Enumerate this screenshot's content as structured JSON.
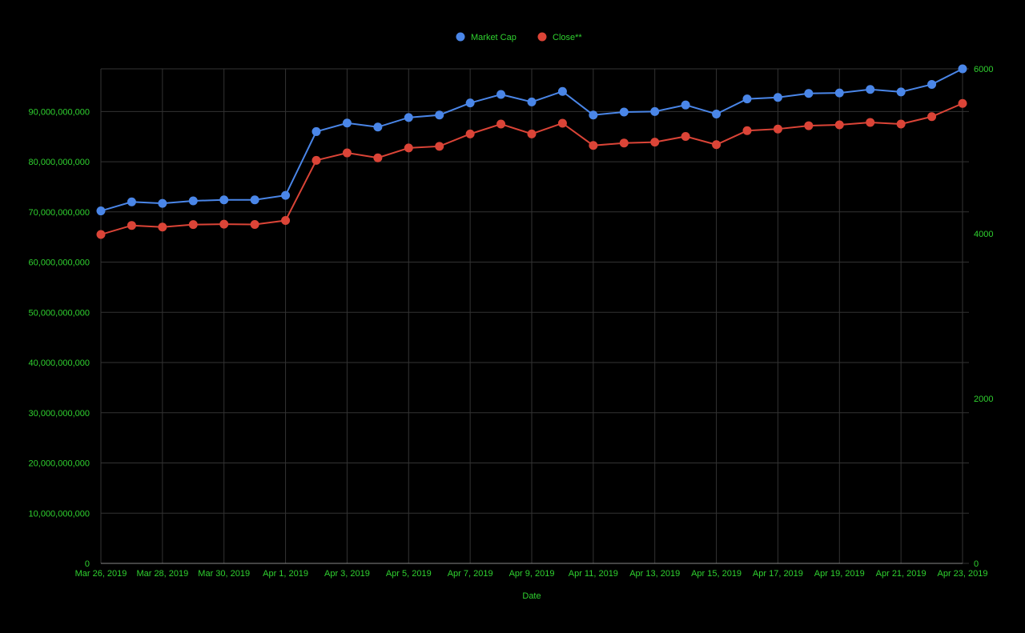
{
  "chart_data": {
    "type": "line",
    "title": "",
    "xlabel": "Date",
    "ylabel": "",
    "y2label": "",
    "legend_position": "top-center",
    "grid": true,
    "ylim": [
      0,
      98500000000
    ],
    "y2lim": [
      0,
      6000
    ],
    "y_ticks": [
      {
        "value": 0,
        "label": "0"
      },
      {
        "value": 10000000000,
        "label": "10,000,000,000"
      },
      {
        "value": 20000000000,
        "label": "20,000,000,000"
      },
      {
        "value": 30000000000,
        "label": "30,000,000,000"
      },
      {
        "value": 40000000000,
        "label": "40,000,000,000"
      },
      {
        "value": 50000000000,
        "label": "50,000,000,000"
      },
      {
        "value": 60000000000,
        "label": "60,000,000,000"
      },
      {
        "value": 70000000000,
        "label": "70,000,000,000"
      },
      {
        "value": 80000000000,
        "label": "80,000,000,000"
      },
      {
        "value": 90000000000,
        "label": "90,000,000,000"
      }
    ],
    "y2_ticks": [
      {
        "value": 0,
        "label": "0"
      },
      {
        "value": 2000,
        "label": "2000"
      },
      {
        "value": 4000,
        "label": "4000"
      },
      {
        "value": 6000,
        "label": "6000"
      }
    ],
    "x": [
      "Mar 26, 2019",
      "Mar 27, 2019",
      "Mar 28, 2019",
      "Mar 29, 2019",
      "Mar 30, 2019",
      "Mar 31, 2019",
      "Apr 1, 2019",
      "Apr 2, 2019",
      "Apr 3, 2019",
      "Apr 4, 2019",
      "Apr 5, 2019",
      "Apr 6, 2019",
      "Apr 7, 2019",
      "Apr 8, 2019",
      "Apr 9, 2019",
      "Apr 10, 2019",
      "Apr 11, 2019",
      "Apr 12, 2019",
      "Apr 13, 2019",
      "Apr 14, 2019",
      "Apr 15, 2019",
      "Apr 16, 2019",
      "Apr 17, 2019",
      "Apr 18, 2019",
      "Apr 19, 2019",
      "Apr 20, 2019",
      "Apr 21, 2019",
      "Apr 22, 2019",
      "Apr 23, 2019"
    ],
    "x_tick_labels": [
      {
        "index": 0,
        "label": "Mar 26, 2019"
      },
      {
        "index": 2,
        "label": "Mar 28, 2019"
      },
      {
        "index": 4,
        "label": "Mar 30, 2019"
      },
      {
        "index": 6,
        "label": "Apr 1, 2019"
      },
      {
        "index": 8,
        "label": "Apr 3, 2019"
      },
      {
        "index": 10,
        "label": "Apr 5, 2019"
      },
      {
        "index": 12,
        "label": "Apr 7, 2019"
      },
      {
        "index": 14,
        "label": "Apr 9, 2019"
      },
      {
        "index": 16,
        "label": "Apr 11, 2019"
      },
      {
        "index": 18,
        "label": "Apr 13, 2019"
      },
      {
        "index": 20,
        "label": "Apr 15, 2019"
      },
      {
        "index": 22,
        "label": "Apr 17, 2019"
      },
      {
        "index": 24,
        "label": "Apr 19, 2019"
      },
      {
        "index": 26,
        "label": "Apr 21, 2019"
      },
      {
        "index": 28,
        "label": "Apr 23, 2019"
      }
    ],
    "series": [
      {
        "name": "Market Cap",
        "axis": "left",
        "color": "#4a86e8",
        "values": [
          70200000000,
          72000000000,
          71700000000,
          72200000000,
          72400000000,
          72400000000,
          73300000000,
          86000000000,
          87700000000,
          86900000000,
          88800000000,
          89300000000,
          91700000000,
          93400000000,
          91900000000,
          94000000000,
          89300000000,
          89900000000,
          90000000000,
          91300000000,
          89500000000,
          92500000000,
          92800000000,
          93600000000,
          93700000000,
          94400000000,
          93900000000,
          95400000000,
          98500000000
        ]
      },
      {
        "name": "Close**",
        "axis": "right",
        "color": "#db4437",
        "values": [
          3990,
          4100,
          4080,
          4110,
          4115,
          4112,
          4160,
          4890,
          4980,
          4920,
          5040,
          5060,
          5210,
          5330,
          5210,
          5340,
          5070,
          5100,
          5110,
          5180,
          5080,
          5250,
          5270,
          5310,
          5320,
          5350,
          5330,
          5420,
          5580
        ]
      }
    ]
  }
}
